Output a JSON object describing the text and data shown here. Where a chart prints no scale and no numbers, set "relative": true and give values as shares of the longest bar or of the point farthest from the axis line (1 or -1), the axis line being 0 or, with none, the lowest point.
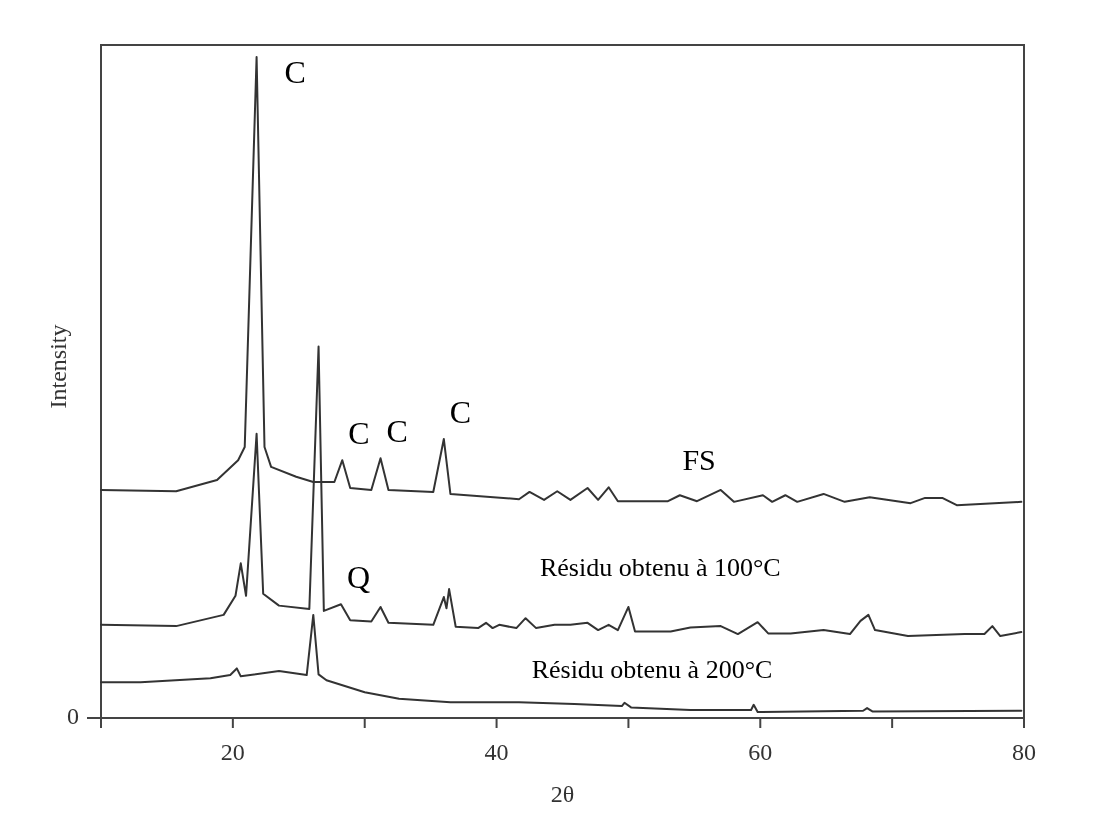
{
  "chart_data": {
    "type": "line",
    "relative": true,
    "xlabel": "2θ",
    "ylabel": "Intensity",
    "xlim": [
      10,
      80
    ],
    "xticks": [
      {
        "value": 10,
        "label": null
      },
      20,
      {
        "value": 30,
        "label": null
      },
      40,
      {
        "value": 50,
        "label": null
      },
      60,
      {
        "value": 70,
        "label": null
      },
      80
    ],
    "grid": false,
    "line_style": "solid",
    "series": [
      {
        "name": "FS",
        "color": "#333333",
        "x": [
          10,
          15.7,
          18.8,
          20.4,
          20.9,
          21.8,
          22.4,
          22.9,
          24.8,
          26.1,
          27.7,
          28.3,
          28.9,
          30.5,
          31.2,
          31.8,
          35.2,
          36.0,
          36.5,
          41.7,
          42.5,
          43.6,
          44.6,
          45.6,
          46.9,
          47.7,
          48.5,
          49.2,
          53,
          53.9,
          55.2,
          57,
          58,
          60.2,
          60.9,
          61.9,
          62.8,
          64.8,
          66.4,
          68.3,
          71.4,
          72.5,
          73.8,
          74.9,
          79.8
        ],
        "values": [
          0.345,
          0.343,
          0.36,
          0.39,
          0.41,
          1.0,
          0.41,
          0.38,
          0.365,
          0.357,
          0.357,
          0.39,
          0.348,
          0.345,
          0.393,
          0.345,
          0.342,
          0.422,
          0.339,
          0.331,
          0.342,
          0.33,
          0.343,
          0.33,
          0.348,
          0.33,
          0.349,
          0.328,
          0.328,
          0.337,
          0.328,
          0.345,
          0.327,
          0.337,
          0.327,
          0.337,
          0.327,
          0.339,
          0.327,
          0.334,
          0.325,
          0.333,
          0.333,
          0.322,
          0.327
        ]
      },
      {
        "name": "Résidu obtenu à 100°C",
        "color": "#333333",
        "x": [
          10,
          15.7,
          19.3,
          20.2,
          20.6,
          21.0,
          21.8,
          22.3,
          23.5,
          25.8,
          26.5,
          26.9,
          28.2,
          28.9,
          30.5,
          31.2,
          31.8,
          35.2,
          36.0,
          36.2,
          36.4,
          36.9,
          38.6,
          39.2,
          39.7,
          40.2,
          41.5,
          42.2,
          43.0,
          44.4,
          45.6,
          46.9,
          47.7,
          48.5,
          49.2,
          50.0,
          50.5,
          53.2,
          54.7,
          57.0,
          58.3,
          59.8,
          60.6,
          62.3,
          64.8,
          66.8,
          67.6,
          68.2,
          68.7,
          71.2,
          75.5,
          77.0,
          77.6,
          78.2,
          79.8
        ],
        "values": [
          0.141,
          0.139,
          0.156,
          0.185,
          0.234,
          0.185,
          0.43,
          0.188,
          0.17,
          0.165,
          0.562,
          0.162,
          0.172,
          0.148,
          0.146,
          0.168,
          0.144,
          0.141,
          0.183,
          0.166,
          0.195,
          0.138,
          0.136,
          0.144,
          0.136,
          0.141,
          0.136,
          0.151,
          0.136,
          0.141,
          0.141,
          0.144,
          0.133,
          0.141,
          0.133,
          0.168,
          0.131,
          0.131,
          0.137,
          0.139,
          0.127,
          0.145,
          0.128,
          0.128,
          0.133,
          0.127,
          0.147,
          0.156,
          0.133,
          0.124,
          0.127,
          0.127,
          0.139,
          0.124,
          0.13
        ]
      },
      {
        "name": "Résidu obtenu à 200°C",
        "color": "#333333",
        "x": [
          10,
          13.0,
          18.3,
          19.8,
          20.3,
          20.6,
          23.5,
          25.6,
          26.1,
          26.5,
          27.1,
          30.0,
          32.6,
          36.5,
          41.7,
          45.9,
          49.5,
          49.7,
          50.2,
          54.7,
          59.3,
          59.5,
          59.8,
          67.8,
          68.1,
          68.5,
          79.8
        ],
        "values": [
          0.054,
          0.054,
          0.06,
          0.065,
          0.075,
          0.063,
          0.071,
          0.065,
          0.156,
          0.066,
          0.057,
          0.039,
          0.029,
          0.024,
          0.024,
          0.021,
          0.018,
          0.023,
          0.016,
          0.012,
          0.012,
          0.02,
          0.009,
          0.011,
          0.015,
          0.01,
          0.011
        ]
      }
    ],
    "annotations": [
      {
        "text": "C",
        "x": 21.8,
        "y": 1.0
      },
      {
        "text": "C",
        "x": 28.3,
        "y": 0.39
      },
      {
        "text": "C",
        "x": 31.2,
        "y": 0.393
      },
      {
        "text": "C",
        "x": 36.0,
        "y": 0.422
      },
      {
        "text": "Q",
        "x": 28.2,
        "y": 0.172
      },
      "0"
    ]
  }
}
